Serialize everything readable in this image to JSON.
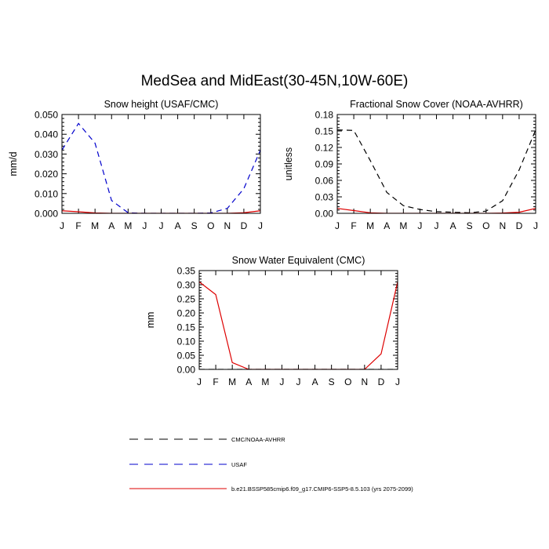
{
  "figure": {
    "title": "MedSea and MidEast(30-45N,10W-60E)"
  },
  "chart_data": [
    {
      "type": "line",
      "title": "Snow height (USAF/CMC)",
      "xlabel": "",
      "ylabel": "mm/d",
      "categories": [
        "J",
        "F",
        "M",
        "A",
        "M",
        "J",
        "J",
        "A",
        "S",
        "O",
        "N",
        "D",
        "J"
      ],
      "ylim": [
        0,
        0.05
      ],
      "yticks": [
        "0.000",
        "0.010",
        "0.020",
        "0.030",
        "0.040",
        "0.050"
      ],
      "series": [
        {
          "name": "USAF",
          "color": "#0000cc",
          "dash": "dashed",
          "values": [
            0.032,
            0.0455,
            0.0355,
            0.0065,
            0.0003,
            0.0,
            0.0,
            0.0,
            0.0,
            0.0002,
            0.0025,
            0.0125,
            0.032
          ]
        },
        {
          "name": "b.e21.BSSP585cmip6.f09_g17.CMIP6-SSP5-8.5.103 (yrs 2075-2099)",
          "color": "#dd0000",
          "dash": "solid",
          "values": [
            0.0013,
            0.0008,
            0.0002,
            0.0,
            0.0,
            0.0,
            0.0,
            0.0,
            0.0,
            0.0,
            0.0,
            0.0003,
            0.0013
          ]
        }
      ]
    },
    {
      "type": "line",
      "title": "Fractional Snow Cover (NOAA-AVHRR)",
      "xlabel": "",
      "ylabel": "unitless",
      "categories": [
        "J",
        "F",
        "M",
        "A",
        "M",
        "J",
        "J",
        "A",
        "S",
        "O",
        "N",
        "D",
        "J"
      ],
      "ylim": [
        0,
        0.18
      ],
      "yticks": [
        "0.00",
        "0.03",
        "0.06",
        "0.09",
        "0.12",
        "0.15",
        "0.18"
      ],
      "series": [
        {
          "name": "CMC/NOAA-AVHRR",
          "color": "#000000",
          "dash": "dashed",
          "values": [
            0.152,
            0.151,
            0.096,
            0.038,
            0.014,
            0.007,
            0.003,
            0.002,
            0.001,
            0.004,
            0.023,
            0.079,
            0.152
          ]
        },
        {
          "name": "b.e21.BSSP585cmip6.f09_g17.CMIP6-SSP5-8.5.103 (yrs 2075-2099)",
          "color": "#dd0000",
          "dash": "solid",
          "values": [
            0.009,
            0.005,
            0.001,
            0.0,
            0.0,
            0.0,
            0.0,
            0.0,
            0.0,
            0.0,
            0.0005,
            0.002,
            0.009
          ]
        }
      ]
    },
    {
      "type": "line",
      "title": "Snow Water Equivalent (CMC)",
      "xlabel": "",
      "ylabel": "mm",
      "categories": [
        "J",
        "F",
        "M",
        "A",
        "M",
        "J",
        "J",
        "A",
        "S",
        "O",
        "N",
        "D",
        "J"
      ],
      "ylim": [
        0,
        0.35
      ],
      "yticks": [
        "0.00",
        "0.05",
        "0.10",
        "0.15",
        "0.20",
        "0.25",
        "0.30",
        "0.35"
      ],
      "series": [
        {
          "name": "CMC/NOAA-AVHRR",
          "color": "#000000",
          "dash": "dashed",
          "values": [
            0.0,
            0.0,
            0.0,
            0.0,
            0.0,
            0.0,
            0.0,
            0.0,
            0.0,
            0.0,
            0.0,
            0.0,
            0.0
          ]
        },
        {
          "name": "b.e21.BSSP585cmip6.f09_g17.CMIP6-SSP5-8.5.103 (yrs 2075-2099)",
          "color": "#dd0000",
          "dash": "solid",
          "values": [
            0.31,
            0.265,
            0.024,
            0.0,
            0.0,
            0.0,
            0.0,
            0.0,
            0.0,
            0.0,
            0.0,
            0.055,
            0.31
          ]
        }
      ]
    }
  ],
  "legend": {
    "placement": "bottom-center",
    "entries": [
      {
        "label": "CMC/NOAA-AVHRR",
        "color": "#000000",
        "dash": "dashed"
      },
      {
        "label": "USAF",
        "color": "#0000cc",
        "dash": "dashed"
      },
      {
        "label": "b.e21.BSSP585cmip6.f09_g17.CMIP6-SSP5-8.5.103 (yrs 2075-2099)",
        "color": "#dd0000",
        "dash": "solid"
      }
    ]
  }
}
